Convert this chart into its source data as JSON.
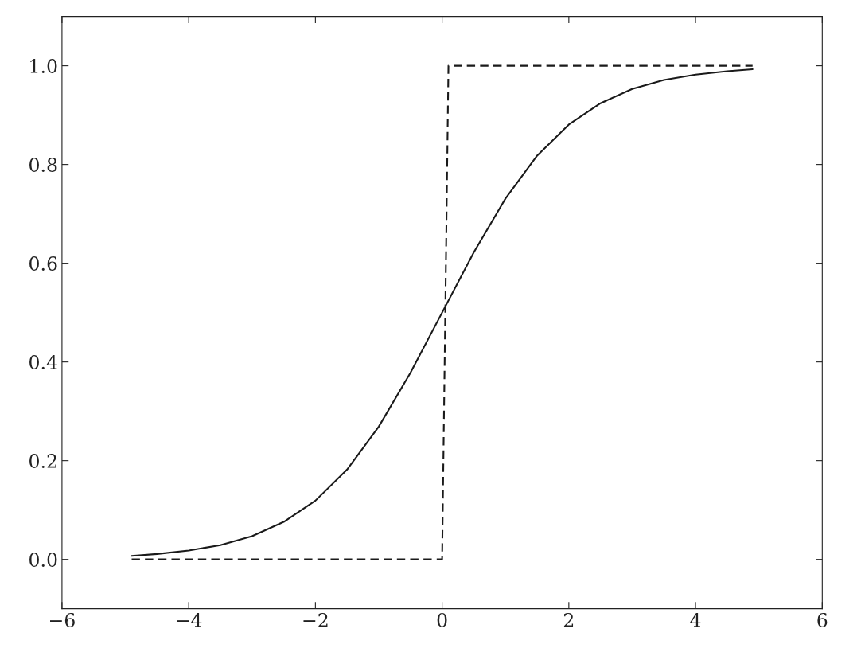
{
  "chart_data": {
    "type": "line",
    "series": [
      {
        "color": "#1a1a1a",
        "line_style": "solid",
        "x": [
          -4.9,
          -4.5,
          -4,
          -3.5,
          -3,
          -2.5,
          -2,
          -1.5,
          -1,
          -0.5,
          0,
          0.5,
          1,
          1.5,
          2,
          2.5,
          3,
          3.5,
          4,
          4.5,
          4.9
        ],
        "values": [
          0.007,
          0.011,
          0.018,
          0.029,
          0.047,
          0.076,
          0.119,
          0.182,
          0.269,
          0.378,
          0.5,
          0.622,
          0.731,
          0.818,
          0.881,
          0.924,
          0.953,
          0.971,
          0.982,
          0.989,
          0.993
        ]
      },
      {
        "color": "#1a1a1a",
        "line_style": "dashed",
        "x": [
          -4.9,
          0,
          0.1,
          4.9
        ],
        "values": [
          0,
          0,
          1,
          1
        ]
      }
    ],
    "xlim": [
      -6,
      6
    ],
    "ylim": [
      -0.1,
      1.1
    ],
    "xticks": [
      {
        "value": -6,
        "label": "−6"
      },
      {
        "value": -4,
        "label": "−4"
      },
      {
        "value": -2,
        "label": "−2"
      },
      {
        "value": 0,
        "label": "0"
      },
      {
        "value": 2,
        "label": "2"
      },
      {
        "value": 4,
        "label": "4"
      },
      {
        "value": 6,
        "label": "6"
      }
    ],
    "yticks": [
      {
        "value": 0,
        "label": "0.0"
      },
      {
        "value": 0.2,
        "label": "0.2"
      },
      {
        "value": 0.4,
        "label": "0.4"
      },
      {
        "value": 0.6,
        "label": "0.6"
      },
      {
        "value": 0.8,
        "label": "0.8"
      },
      {
        "value": 1,
        "label": "1.0"
      }
    ],
    "grid": false,
    "legend": false
  }
}
